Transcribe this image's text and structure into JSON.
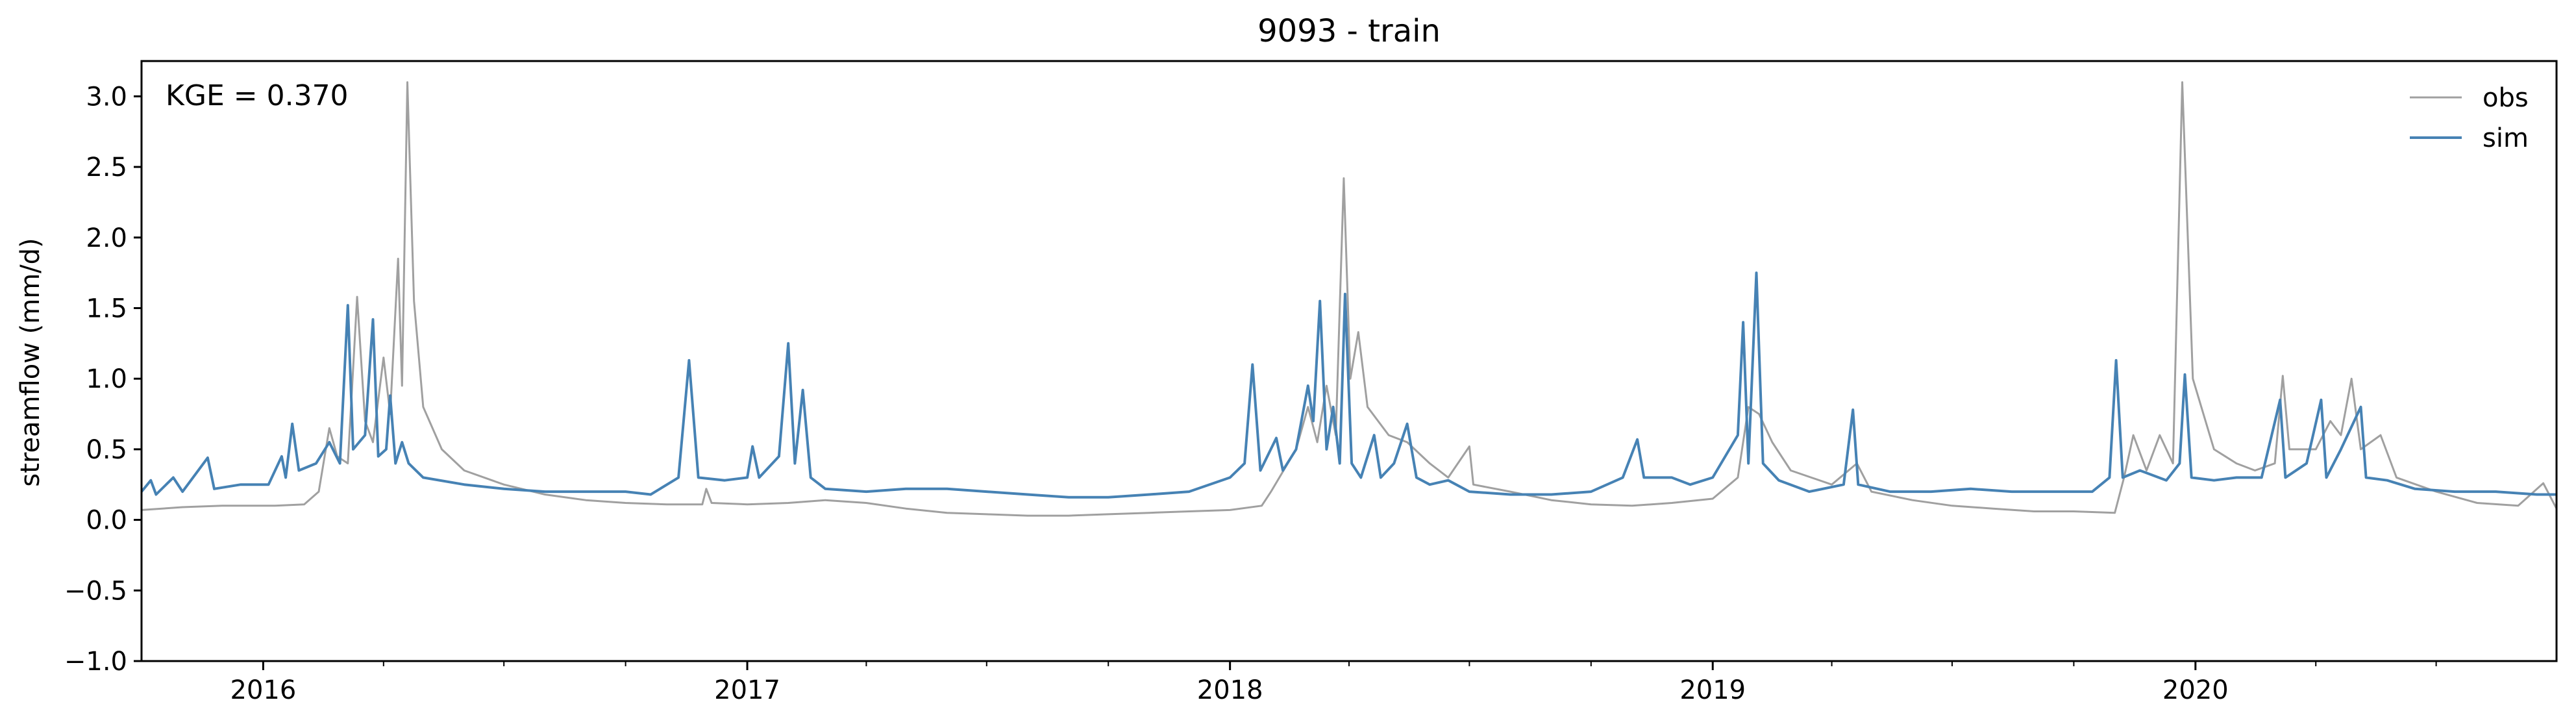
{
  "chart_data": {
    "type": "line",
    "title": "9093 - train",
    "ylabel": "streamflow (mm/d)",
    "xlabel": "",
    "annotation": "KGE = 0.370",
    "xlim": [
      "2015-10-01",
      "2020-09-30"
    ],
    "ylim": [
      -1.0,
      3.25
    ],
    "yticks": [
      -1.0,
      -0.5,
      0.0,
      0.5,
      1.0,
      1.5,
      2.0,
      2.5,
      3.0
    ],
    "ytick_labels": [
      "−1.0",
      "−0.5",
      "0.0",
      "0.5",
      "1.0",
      "1.5",
      "2.0",
      "2.5",
      "3.0"
    ],
    "xticks": [
      "2016-01-01",
      "2017-01-01",
      "2018-01-01",
      "2019-01-01",
      "2020-01-01"
    ],
    "xtick_labels": [
      "2016",
      "2017",
      "2018",
      "2019",
      "2020"
    ],
    "grid": false,
    "legend_position": "top-right",
    "series": [
      {
        "name": "obs",
        "color": "#a0a0a0",
        "points": [
          [
            "2015-10-01",
            0.07
          ],
          [
            "2015-11-01",
            0.09
          ],
          [
            "2015-12-01",
            0.1
          ],
          [
            "2016-01-10",
            0.1
          ],
          [
            "2016-02-01",
            0.11
          ],
          [
            "2016-02-12",
            0.2
          ],
          [
            "2016-02-20",
            0.65
          ],
          [
            "2016-02-26",
            0.45
          ],
          [
            "2016-03-05",
            0.4
          ],
          [
            "2016-03-12",
            1.58
          ],
          [
            "2016-03-18",
            0.7
          ],
          [
            "2016-03-24",
            0.55
          ],
          [
            "2016-04-01",
            1.15
          ],
          [
            "2016-04-06",
            0.75
          ],
          [
            "2016-04-12",
            1.85
          ],
          [
            "2016-04-15",
            0.95
          ],
          [
            "2016-04-19",
            3.1
          ],
          [
            "2016-04-24",
            1.55
          ],
          [
            "2016-05-01",
            0.8
          ],
          [
            "2016-05-15",
            0.5
          ],
          [
            "2016-06-01",
            0.35
          ],
          [
            "2016-07-01",
            0.25
          ],
          [
            "2016-08-01",
            0.18
          ],
          [
            "2016-09-01",
            0.14
          ],
          [
            "2016-10-01",
            0.12
          ],
          [
            "2016-11-01",
            0.11
          ],
          [
            "2016-11-28",
            0.11
          ],
          [
            "2016-12-01",
            0.22
          ],
          [
            "2016-12-05",
            0.12
          ],
          [
            "2017-01-01",
            0.11
          ],
          [
            "2017-02-01",
            0.12
          ],
          [
            "2017-03-01",
            0.14
          ],
          [
            "2017-04-01",
            0.12
          ],
          [
            "2017-05-01",
            0.08
          ],
          [
            "2017-06-01",
            0.05
          ],
          [
            "2017-07-01",
            0.04
          ],
          [
            "2017-08-01",
            0.03
          ],
          [
            "2017-09-01",
            0.03
          ],
          [
            "2017-10-01",
            0.04
          ],
          [
            "2017-11-01",
            0.05
          ],
          [
            "2017-12-01",
            0.06
          ],
          [
            "2018-01-01",
            0.07
          ],
          [
            "2018-01-25",
            0.1
          ],
          [
            "2018-02-01",
            0.2
          ],
          [
            "2018-02-20",
            0.5
          ],
          [
            "2018-03-01",
            0.8
          ],
          [
            "2018-03-08",
            0.55
          ],
          [
            "2018-03-15",
            0.95
          ],
          [
            "2018-03-22",
            0.6
          ],
          [
            "2018-03-28",
            2.42
          ],
          [
            "2018-04-02",
            1.0
          ],
          [
            "2018-04-08",
            1.33
          ],
          [
            "2018-04-15",
            0.8
          ],
          [
            "2018-05-01",
            0.6
          ],
          [
            "2018-05-15",
            0.55
          ],
          [
            "2018-06-01",
            0.4
          ],
          [
            "2018-06-15",
            0.3
          ],
          [
            "2018-07-01",
            0.52
          ],
          [
            "2018-07-04",
            0.25
          ],
          [
            "2018-08-01",
            0.2
          ],
          [
            "2018-09-01",
            0.14
          ],
          [
            "2018-10-01",
            0.11
          ],
          [
            "2018-11-01",
            0.1
          ],
          [
            "2018-12-01",
            0.12
          ],
          [
            "2019-01-01",
            0.15
          ],
          [
            "2019-01-20",
            0.3
          ],
          [
            "2019-01-28",
            0.8
          ],
          [
            "2019-02-05",
            0.75
          ],
          [
            "2019-02-15",
            0.55
          ],
          [
            "2019-03-01",
            0.35
          ],
          [
            "2019-04-01",
            0.25
          ],
          [
            "2019-04-20",
            0.4
          ],
          [
            "2019-05-01",
            0.2
          ],
          [
            "2019-06-01",
            0.14
          ],
          [
            "2019-07-01",
            0.1
          ],
          [
            "2019-08-01",
            0.08
          ],
          [
            "2019-09-01",
            0.06
          ],
          [
            "2019-10-01",
            0.06
          ],
          [
            "2019-11-01",
            0.05
          ],
          [
            "2019-11-08",
            0.3
          ],
          [
            "2019-11-15",
            0.6
          ],
          [
            "2019-11-25",
            0.35
          ],
          [
            "2019-12-05",
            0.6
          ],
          [
            "2019-12-15",
            0.4
          ],
          [
            "2019-12-22",
            3.1
          ],
          [
            "2019-12-30",
            1.0
          ],
          [
            "2020-01-15",
            0.5
          ],
          [
            "2020-02-01",
            0.4
          ],
          [
            "2020-02-15",
            0.35
          ],
          [
            "2020-03-01",
            0.4
          ],
          [
            "2020-03-07",
            1.02
          ],
          [
            "2020-03-12",
            0.5
          ],
          [
            "2020-04-01",
            0.5
          ],
          [
            "2020-04-12",
            0.7
          ],
          [
            "2020-04-20",
            0.6
          ],
          [
            "2020-04-28",
            1.0
          ],
          [
            "2020-05-05",
            0.5
          ],
          [
            "2020-05-20",
            0.6
          ],
          [
            "2020-06-01",
            0.3
          ],
          [
            "2020-07-01",
            0.2
          ],
          [
            "2020-08-01",
            0.12
          ],
          [
            "2020-09-01",
            0.1
          ],
          [
            "2020-09-20",
            0.26
          ],
          [
            "2020-09-30",
            0.08
          ]
        ]
      },
      {
        "name": "sim",
        "color": "#4682b4",
        "points": [
          [
            "2015-10-01",
            0.2
          ],
          [
            "2015-10-08",
            0.28
          ],
          [
            "2015-10-12",
            0.18
          ],
          [
            "2015-10-25",
            0.3
          ],
          [
            "2015-11-01",
            0.2
          ],
          [
            "2015-11-20",
            0.44
          ],
          [
            "2015-11-25",
            0.22
          ],
          [
            "2015-12-15",
            0.25
          ],
          [
            "2016-01-05",
            0.25
          ],
          [
            "2016-01-15",
            0.45
          ],
          [
            "2016-01-18",
            0.3
          ],
          [
            "2016-01-23",
            0.68
          ],
          [
            "2016-01-28",
            0.35
          ],
          [
            "2016-02-10",
            0.4
          ],
          [
            "2016-02-20",
            0.55
          ],
          [
            "2016-02-28",
            0.4
          ],
          [
            "2016-03-05",
            1.52
          ],
          [
            "2016-03-09",
            0.5
          ],
          [
            "2016-03-18",
            0.6
          ],
          [
            "2016-03-24",
            1.42
          ],
          [
            "2016-03-28",
            0.45
          ],
          [
            "2016-04-03",
            0.5
          ],
          [
            "2016-04-06",
            0.88
          ],
          [
            "2016-04-10",
            0.4
          ],
          [
            "2016-04-15",
            0.55
          ],
          [
            "2016-04-20",
            0.4
          ],
          [
            "2016-05-01",
            0.3
          ],
          [
            "2016-06-01",
            0.25
          ],
          [
            "2016-07-01",
            0.22
          ],
          [
            "2016-08-01",
            0.2
          ],
          [
            "2016-09-01",
            0.2
          ],
          [
            "2016-10-01",
            0.2
          ],
          [
            "2016-10-20",
            0.18
          ],
          [
            "2016-11-10",
            0.3
          ],
          [
            "2016-11-18",
            1.13
          ],
          [
            "2016-11-25",
            0.3
          ],
          [
            "2016-12-15",
            0.28
          ],
          [
            "2017-01-01",
            0.3
          ],
          [
            "2017-01-05",
            0.52
          ],
          [
            "2017-01-10",
            0.3
          ],
          [
            "2017-01-25",
            0.45
          ],
          [
            "2017-02-01",
            1.25
          ],
          [
            "2017-02-06",
            0.4
          ],
          [
            "2017-02-12",
            0.92
          ],
          [
            "2017-02-18",
            0.3
          ],
          [
            "2017-03-01",
            0.22
          ],
          [
            "2017-04-01",
            0.2
          ],
          [
            "2017-05-01",
            0.22
          ],
          [
            "2017-06-01",
            0.22
          ],
          [
            "2017-07-01",
            0.2
          ],
          [
            "2017-08-01",
            0.18
          ],
          [
            "2017-09-01",
            0.16
          ],
          [
            "2017-10-01",
            0.16
          ],
          [
            "2017-11-01",
            0.18
          ],
          [
            "2017-12-01",
            0.2
          ],
          [
            "2018-01-01",
            0.3
          ],
          [
            "2018-01-12",
            0.4
          ],
          [
            "2018-01-18",
            1.1
          ],
          [
            "2018-01-24",
            0.35
          ],
          [
            "2018-02-05",
            0.58
          ],
          [
            "2018-02-10",
            0.35
          ],
          [
            "2018-02-20",
            0.5
          ],
          [
            "2018-03-01",
            0.95
          ],
          [
            "2018-03-05",
            0.7
          ],
          [
            "2018-03-10",
            1.55
          ],
          [
            "2018-03-15",
            0.5
          ],
          [
            "2018-03-20",
            0.8
          ],
          [
            "2018-03-25",
            0.4
          ],
          [
            "2018-03-29",
            1.6
          ],
          [
            "2018-04-03",
            0.4
          ],
          [
            "2018-04-10",
            0.3
          ],
          [
            "2018-04-20",
            0.6
          ],
          [
            "2018-04-25",
            0.3
          ],
          [
            "2018-05-05",
            0.4
          ],
          [
            "2018-05-15",
            0.68
          ],
          [
            "2018-05-22",
            0.3
          ],
          [
            "2018-06-01",
            0.25
          ],
          [
            "2018-06-15",
            0.28
          ],
          [
            "2018-07-01",
            0.2
          ],
          [
            "2018-08-01",
            0.18
          ],
          [
            "2018-09-01",
            0.18
          ],
          [
            "2018-10-01",
            0.2
          ],
          [
            "2018-10-25",
            0.3
          ],
          [
            "2018-11-05",
            0.57
          ],
          [
            "2018-11-10",
            0.3
          ],
          [
            "2018-12-01",
            0.3
          ],
          [
            "2018-12-15",
            0.25
          ],
          [
            "2019-01-01",
            0.3
          ],
          [
            "2019-01-20",
            0.6
          ],
          [
            "2019-01-24",
            1.4
          ],
          [
            "2019-01-28",
            0.4
          ],
          [
            "2019-02-03",
            1.75
          ],
          [
            "2019-02-08",
            0.4
          ],
          [
            "2019-02-20",
            0.28
          ],
          [
            "2019-03-15",
            0.2
          ],
          [
            "2019-04-10",
            0.25
          ],
          [
            "2019-04-17",
            0.78
          ],
          [
            "2019-04-21",
            0.25
          ],
          [
            "2019-05-15",
            0.2
          ],
          [
            "2019-06-15",
            0.2
          ],
          [
            "2019-07-15",
            0.22
          ],
          [
            "2019-08-15",
            0.2
          ],
          [
            "2019-09-15",
            0.2
          ],
          [
            "2019-10-15",
            0.2
          ],
          [
            "2019-10-28",
            0.3
          ],
          [
            "2019-11-02",
            1.13
          ],
          [
            "2019-11-07",
            0.3
          ],
          [
            "2019-11-20",
            0.35
          ],
          [
            "2019-12-10",
            0.28
          ],
          [
            "2019-12-20",
            0.4
          ],
          [
            "2019-12-24",
            1.03
          ],
          [
            "2019-12-29",
            0.3
          ],
          [
            "2020-01-15",
            0.28
          ],
          [
            "2020-02-01",
            0.3
          ],
          [
            "2020-02-20",
            0.3
          ],
          [
            "2020-03-05",
            0.85
          ],
          [
            "2020-03-09",
            0.3
          ],
          [
            "2020-03-25",
            0.4
          ],
          [
            "2020-04-05",
            0.85
          ],
          [
            "2020-04-09",
            0.3
          ],
          [
            "2020-04-20",
            0.5
          ],
          [
            "2020-05-05",
            0.8
          ],
          [
            "2020-05-09",
            0.3
          ],
          [
            "2020-05-25",
            0.28
          ],
          [
            "2020-06-15",
            0.22
          ],
          [
            "2020-07-15",
            0.2
          ],
          [
            "2020-08-15",
            0.2
          ],
          [
            "2020-09-15",
            0.18
          ],
          [
            "2020-09-30",
            0.18
          ]
        ]
      }
    ]
  }
}
